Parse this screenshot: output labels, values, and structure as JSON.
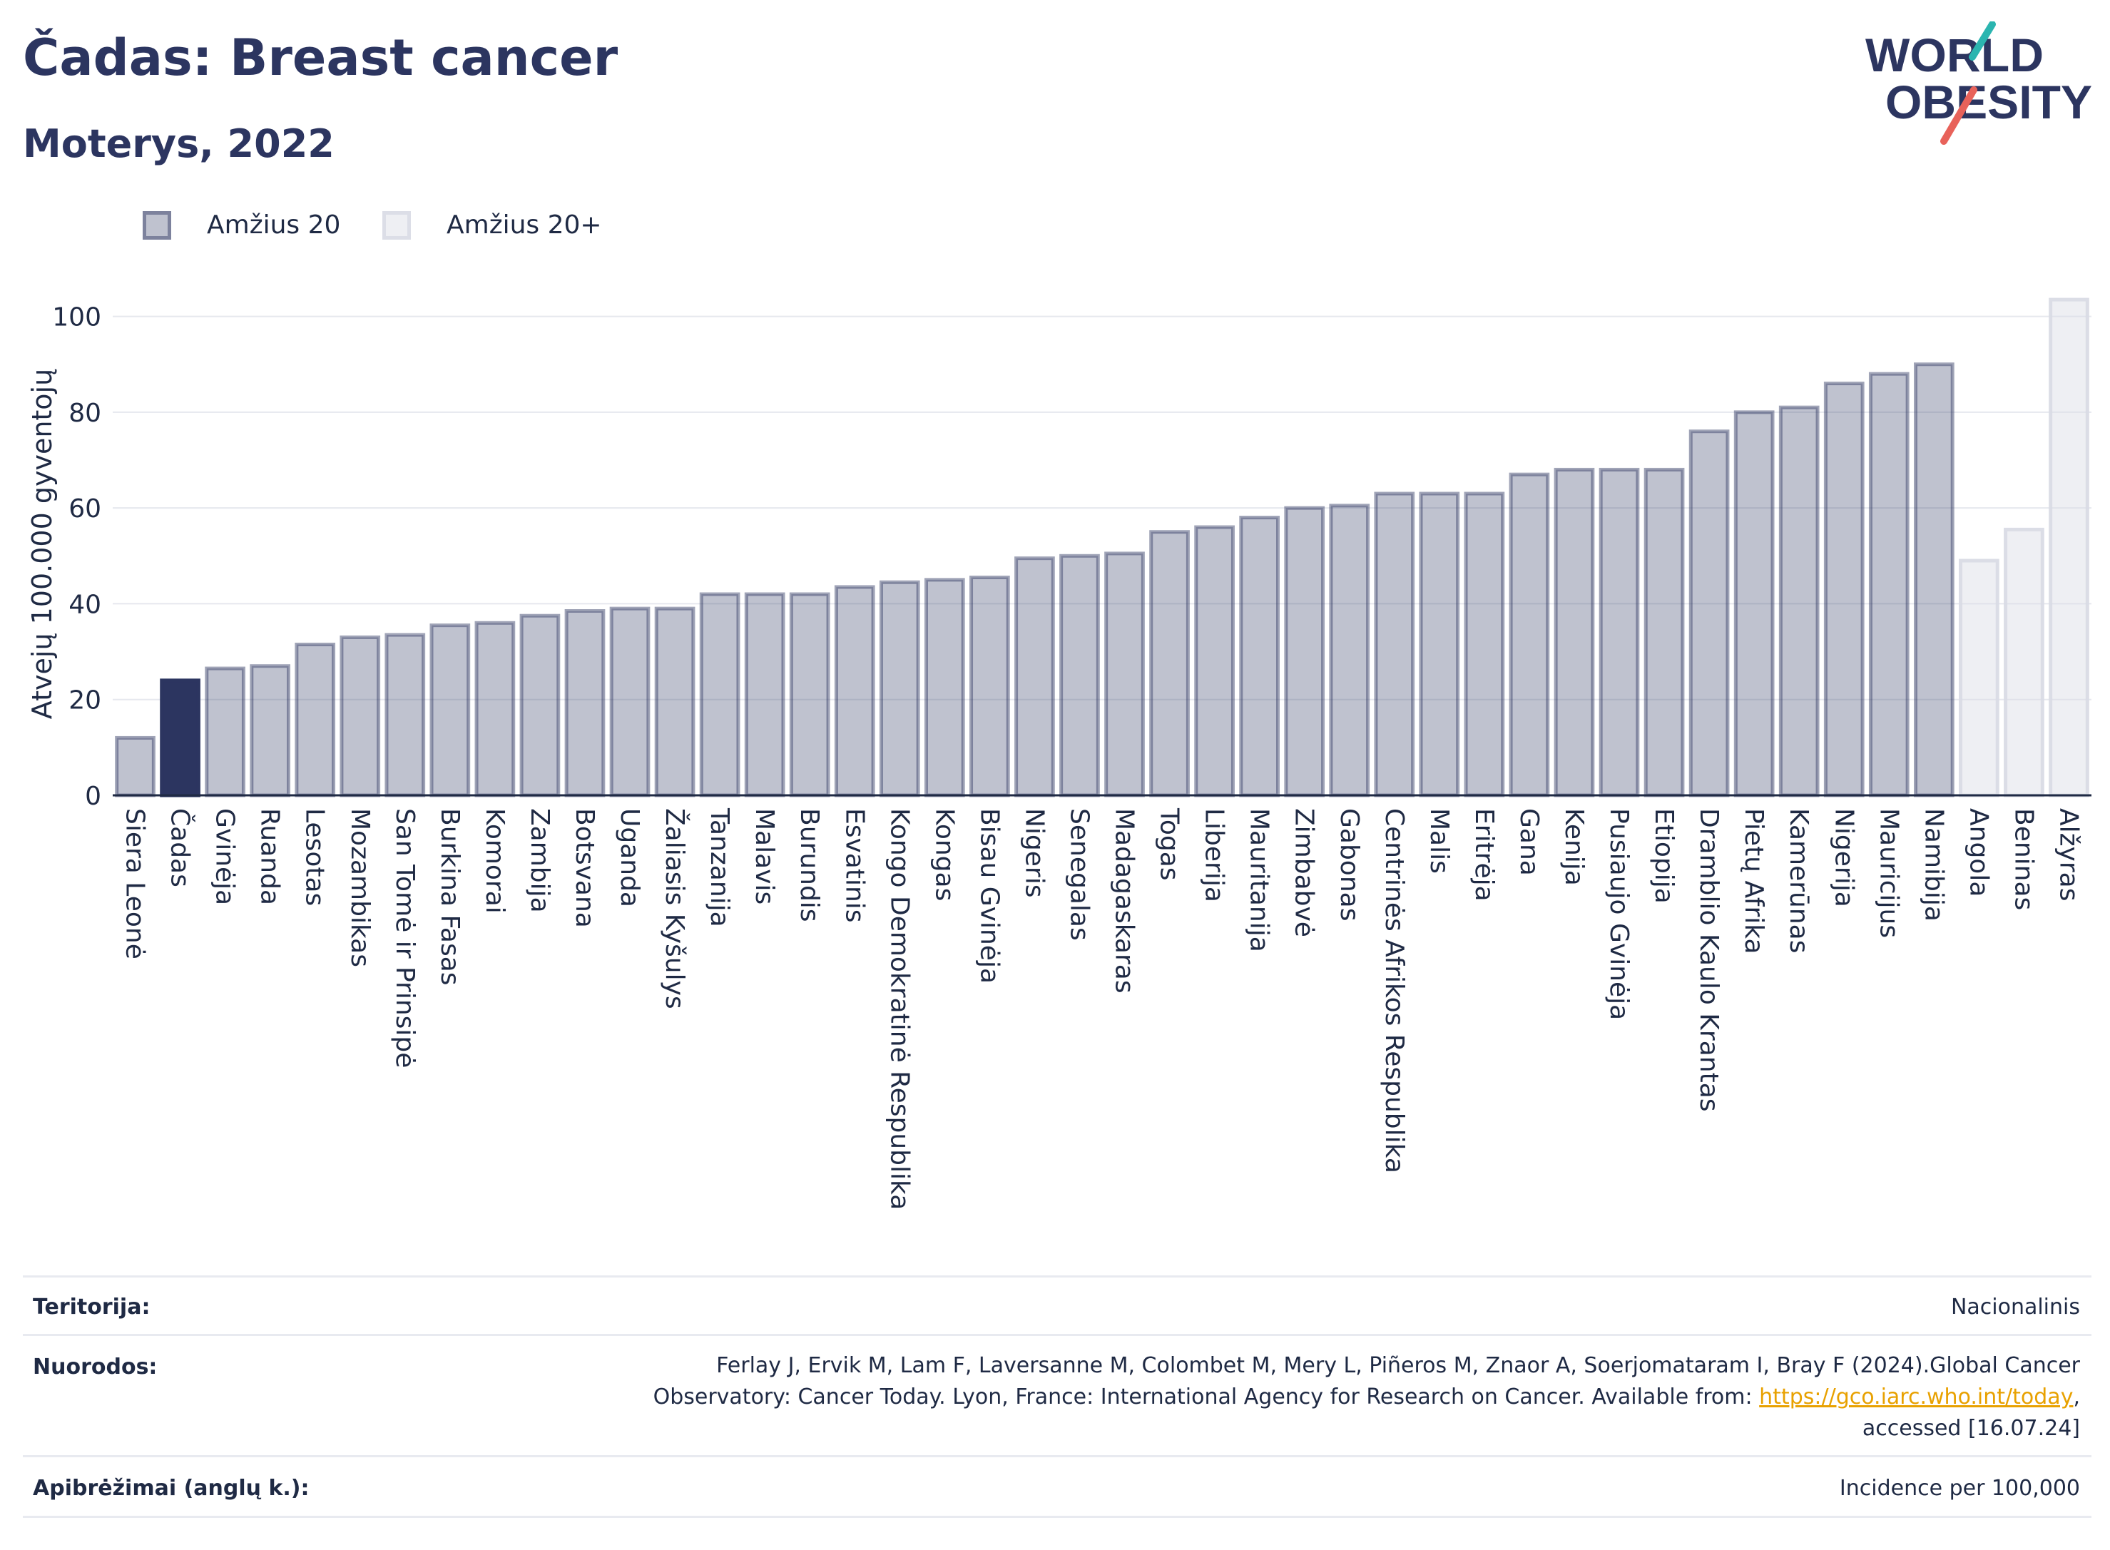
{
  "header": {
    "title": "Čadas: Breast cancer",
    "subtitle": "Moterys, 2022"
  },
  "logo": {
    "line1": "WORLD",
    "line2": "OBESITY"
  },
  "legend": {
    "items": [
      {
        "label": "Amžius 20",
        "color": "#2c3560"
      },
      {
        "label": "Amžius 20+",
        "color": "#d9dbe5"
      }
    ]
  },
  "chart_data": {
    "type": "bar",
    "ylabel": "Atvejų 100.000 gyventojų",
    "ylim": [
      0,
      105
    ],
    "yticks": [
      0,
      20,
      40,
      60,
      80,
      100
    ],
    "grid": true,
    "legend_position": "top-left",
    "highlight": "Čadas",
    "categories": [
      "Siera Leonė",
      "Čadas",
      "Gvinėja",
      "Ruanda",
      "Lesotas",
      "Mozambikas",
      "San Tomė ir Prinsipė",
      "Burkina Fasas",
      "Komorai",
      "Zambija",
      "Botsvana",
      "Uganda",
      "Žaliasis Kyšulys",
      "Tanzanija",
      "Malavis",
      "Burundis",
      "Esvatinis",
      "Kongo Demokratinė Respublika",
      "Kongas",
      "Bisau Gvinėja",
      "Nigeris",
      "Senegalas",
      "Madagaskaras",
      "Togas",
      "Liberija",
      "Mauritanija",
      "Zimbabvė",
      "Gabonas",
      "Centrinės Afrikos Respublika",
      "Malis",
      "Eritrėja",
      "Gana",
      "Kenija",
      "Pusiaujo Gvinėja",
      "Etiopija",
      "Dramblio Kaulo Krantas",
      "Pietų Afrika",
      "Kamerūnas",
      "Nigerija",
      "Mauricijus",
      "Namibija",
      "Angola",
      "Beninas",
      "Alžyras"
    ],
    "values": [
      12,
      24,
      26.5,
      27,
      31.5,
      33,
      33.5,
      35.5,
      36,
      37.5,
      38.5,
      39,
      39,
      42,
      42,
      42,
      43.5,
      44.5,
      45,
      45.5,
      49.5,
      50,
      50.5,
      55,
      56,
      58,
      60,
      60.5,
      63,
      63,
      63,
      67,
      68,
      68,
      68,
      76,
      80,
      81,
      86,
      88,
      90,
      49,
      55.5,
      103.5
    ],
    "series_group": [
      "Amžius 20",
      "Amžius 20",
      "Amžius 20",
      "Amžius 20",
      "Amžius 20",
      "Amžius 20",
      "Amžius 20",
      "Amžius 20",
      "Amžius 20",
      "Amžius 20",
      "Amžius 20",
      "Amžius 20",
      "Amžius 20",
      "Amžius 20",
      "Amžius 20",
      "Amžius 20",
      "Amžius 20",
      "Amžius 20",
      "Amžius 20",
      "Amžius 20",
      "Amžius 20",
      "Amžius 20",
      "Amžius 20",
      "Amžius 20",
      "Amžius 20",
      "Amžius 20",
      "Amžius 20",
      "Amžius 20",
      "Amžius 20",
      "Amžius 20",
      "Amžius 20",
      "Amžius 20",
      "Amžius 20",
      "Amžius 20",
      "Amžius 20",
      "Amžius 20",
      "Amžius 20",
      "Amžius 20",
      "Amžius 20",
      "Amžius 20",
      "Amžius 20",
      "Amžius 20+",
      "Amžius 20+",
      "Amžius 20+"
    ]
  },
  "info": {
    "territory_label": "Teritorija:",
    "territory_value": "Nacionalinis",
    "refs_label": "Nuorodos:",
    "refs_line1": "Ferlay J, Ervik M, Lam F, Laversanne M, Colombet M, Mery L, Piñeros M, Znaor A, Soerjomataram I, Bray F (2024).Global Cancer",
    "refs_line2_pre": "Observatory: Cancer Today. Lyon, France: International Agency for Research on Cancer. Available from: ",
    "refs_link": "https://gco.iarc.who.int/today",
    "refs_line2_post": ",",
    "refs_line3": "accessed [16.07.24]",
    "defs_label": "Apibrėžimai (anglų k.):",
    "defs_value": "Incidence per 100,000"
  }
}
